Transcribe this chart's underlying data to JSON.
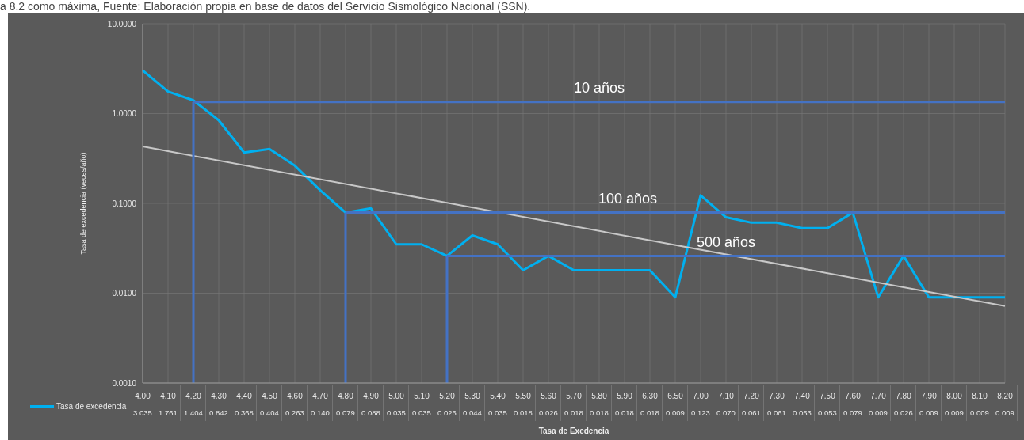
{
  "chart_data": {
    "type": "line",
    "xlabel": "Tasa de Exedencia",
    "ylabel": "Tasa de excedencia (veces/año)",
    "annotations": [
      "a 8.2 como máxima, Fuente: Elaboración propia en base de datos del Servicio Sismológico Nacional (SSN)."
    ],
    "categories": [
      "4.00",
      "4.10",
      "4.20",
      "4.30",
      "4.40",
      "4.50",
      "4.60",
      "4.70",
      "4.80",
      "4.90",
      "5.00",
      "5.10",
      "5.20",
      "5.30",
      "5.40",
      "5.50",
      "5.60",
      "5.70",
      "5.80",
      "5.90",
      "6.30",
      "6.50",
      "7.00",
      "7.10",
      "7.20",
      "7.30",
      "7.40",
      "7.50",
      "7.60",
      "7.70",
      "7.80",
      "7.90",
      "8.00",
      "8.10",
      "8.20"
    ],
    "series": [
      {
        "name": "Tasa de excedencia",
        "color": "#00b0f0",
        "value_labels": [
          "3.035",
          "1.761",
          "1.404",
          "0.842",
          "0.368",
          "0.404",
          "0.263",
          "0.140",
          "0.079",
          "0.088",
          "0.035",
          "0.035",
          "0.026",
          "0.044",
          "0.035",
          "0.018",
          "0.026",
          "0.018",
          "0.018",
          "0.018",
          "0.018",
          "0.009",
          "0.123",
          "0.070",
          "0.061",
          "0.061",
          "0.053",
          "0.053",
          "0.079",
          "0.009",
          "0.026",
          "0.009",
          "0.009",
          "0.009",
          "0.009"
        ],
        "values": [
          3.035,
          1.761,
          1.404,
          0.842,
          0.368,
          0.404,
          0.263,
          0.14,
          0.079,
          0.088,
          0.035,
          0.035,
          0.026,
          0.044,
          0.035,
          0.018,
          0.026,
          0.018,
          0.018,
          0.018,
          0.018,
          0.009,
          0.123,
          0.07,
          0.061,
          0.061,
          0.053,
          0.053,
          0.079,
          0.009,
          0.026,
          0.009,
          0.009,
          0.009,
          0.009
        ]
      },
      {
        "color": "#c8c8c8",
        "values": [
          0.43,
          null,
          null,
          null,
          null,
          null,
          null,
          null,
          null,
          null,
          null,
          null,
          null,
          null,
          null,
          null,
          null,
          null,
          null,
          null,
          null,
          null,
          null,
          null,
          null,
          null,
          null,
          null,
          null,
          null,
          null,
          null,
          null,
          null,
          0.0072
        ]
      }
    ],
    "log": "y",
    "ylim": [
      0.001,
      10
    ],
    "yticks": [
      {
        "value": 0.001,
        "label": "0.0010"
      },
      {
        "value": 0.01,
        "label": "0.0100"
      },
      {
        "value": 0.1,
        "label": "0.1000"
      },
      {
        "value": 1,
        "label": "1.0000"
      },
      {
        "value": 10,
        "label": "10.0000"
      }
    ],
    "ref_lines": [
      {
        "axis": "y",
        "value": 1.35,
        "label": "10 años",
        "color": "#4472c4"
      },
      {
        "axis": "y",
        "value": 0.079,
        "label": "100 años",
        "color": "#4472c4"
      },
      {
        "axis": "y",
        "value": 0.026,
        "label": "500 años",
        "color": "#4472c4"
      },
      {
        "axis": "x",
        "value": "4.20",
        "color": "#4472c4"
      },
      {
        "axis": "x",
        "value": "4.80",
        "color": "#4472c4"
      },
      {
        "axis": "x",
        "value": "5.20",
        "color": "#4472c4"
      }
    ],
    "grid": true,
    "legend": "bottom left",
    "marker": "none",
    "line_style": "solid"
  }
}
